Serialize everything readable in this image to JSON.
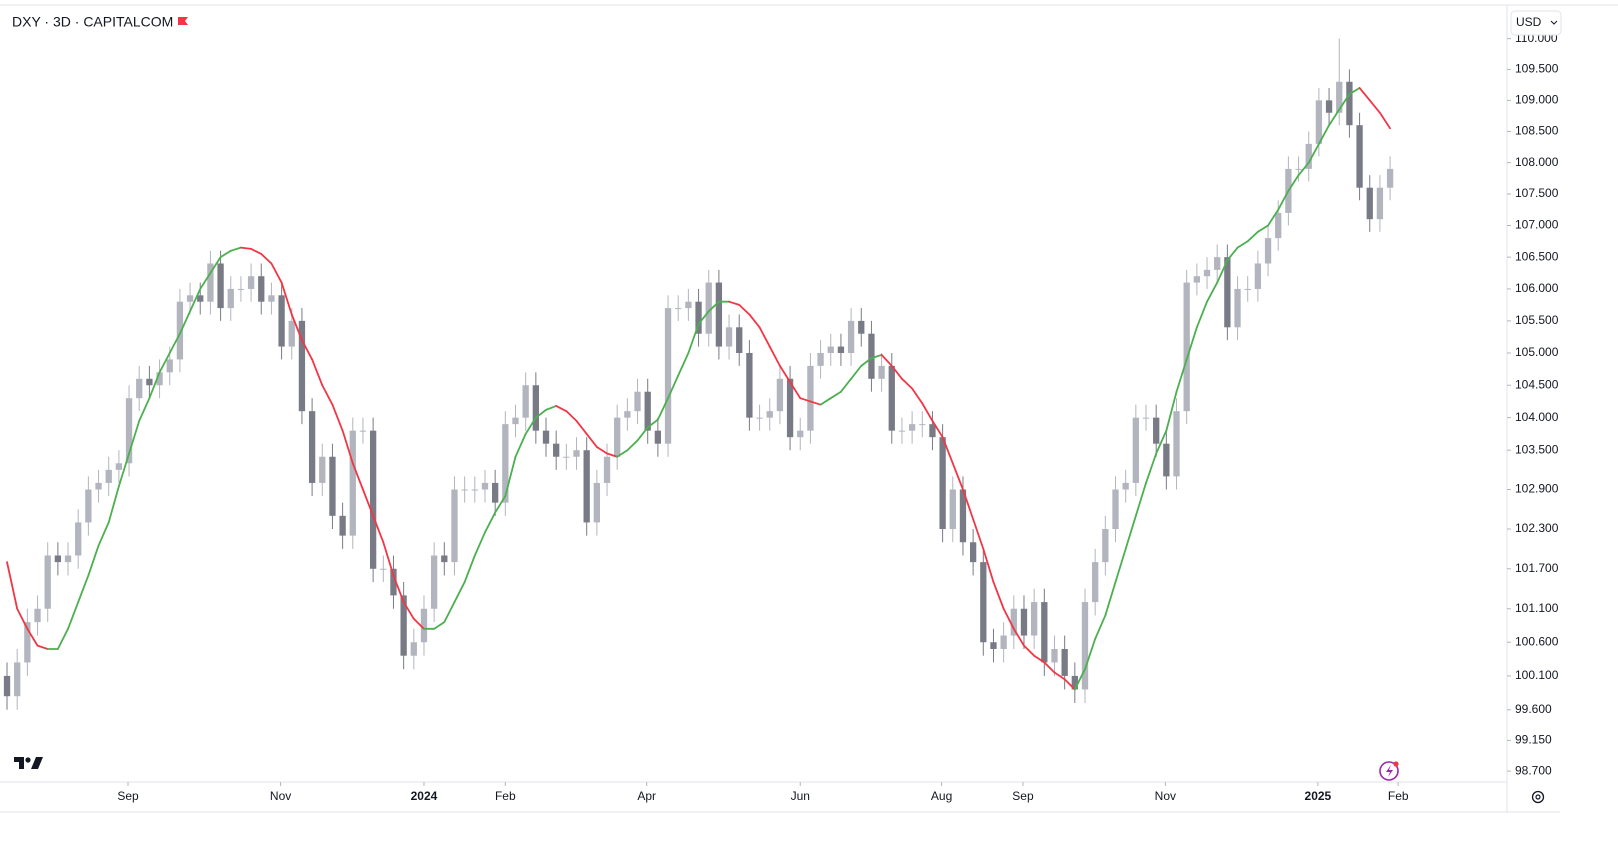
{
  "header": {
    "title": "DXY · 3D · CAPITALCOM",
    "currency": "USD"
  },
  "chart_data": {
    "type": "candlestick",
    "log_scale": true,
    "up_color": "#b2b5be",
    "down_color": "#787b86",
    "open": [
      100.1,
      99.8,
      100.3,
      100.9,
      101.1,
      101.9,
      101.8,
      101.9,
      102.4,
      102.9,
      103.0,
      103.2,
      103.3,
      104.3,
      104.6,
      104.5,
      104.7,
      104.9,
      105.8,
      105.9,
      105.8,
      106.4,
      105.7,
      106.0,
      106.0,
      106.2,
      105.8,
      105.9,
      105.1,
      105.5,
      104.1,
      103.0,
      103.4,
      102.5,
      102.2,
      103.8,
      103.8,
      101.7,
      101.7,
      101.3,
      100.4,
      100.6,
      101.1,
      101.9,
      101.8,
      102.9,
      102.9,
      102.9,
      103.0,
      102.7,
      103.9,
      104.0,
      104.5,
      103.8,
      103.6,
      103.4,
      103.4,
      103.5,
      102.4,
      103.0,
      103.4,
      104.0,
      104.1,
      104.4,
      103.8,
      103.6,
      105.7,
      105.7,
      105.8,
      105.3,
      106.1,
      105.1,
      105.4,
      105.0,
      104.0,
      104.0,
      104.1,
      104.6,
      103.7,
      103.8,
      104.8,
      105.0,
      105.1,
      105.0,
      105.5,
      105.3,
      104.6,
      104.8,
      103.8,
      103.8,
      103.9,
      103.9,
      103.7,
      102.3,
      102.9,
      102.1,
      101.8,
      100.6,
      100.5,
      100.7,
      101.1,
      100.7,
      101.2,
      100.3,
      100.5,
      100.1,
      99.9,
      101.2,
      101.8,
      102.3,
      102.9,
      103.0,
      104.0,
      104.0,
      103.6,
      103.1,
      104.1,
      106.1,
      106.2,
      106.3,
      106.5,
      105.4,
      106.0,
      106.0,
      106.4,
      106.8,
      107.2,
      107.9,
      107.9,
      108.3,
      109.0,
      108.8,
      109.3,
      108.6,
      107.6,
      107.1,
      107.6
    ],
    "high": [
      100.3,
      100.5,
      101.1,
      101.3,
      102.1,
      102.1,
      102.1,
      102.6,
      103.1,
      103.2,
      103.4,
      103.5,
      104.5,
      104.8,
      104.8,
      104.9,
      105.1,
      106.0,
      106.1,
      106.1,
      106.6,
      106.6,
      106.2,
      106.2,
      106.4,
      106.4,
      106.1,
      106.1,
      105.7,
      105.7,
      104.3,
      103.6,
      103.6,
      102.7,
      104.0,
      104.0,
      104.0,
      101.9,
      101.9,
      101.5,
      100.8,
      101.3,
      102.1,
      102.1,
      103.1,
      103.1,
      103.1,
      103.2,
      103.2,
      104.1,
      104.2,
      104.7,
      104.7,
      104.0,
      103.8,
      103.6,
      103.7,
      103.7,
      103.2,
      103.6,
      104.2,
      104.3,
      104.6,
      104.6,
      104.0,
      105.9,
      105.9,
      106.0,
      106.0,
      106.3,
      106.3,
      105.6,
      105.6,
      105.2,
      104.2,
      104.3,
      104.8,
      104.8,
      104.0,
      105.0,
      105.2,
      105.3,
      105.3,
      105.7,
      105.7,
      105.5,
      105.0,
      105.0,
      104.0,
      104.1,
      104.1,
      104.1,
      103.9,
      103.1,
      103.1,
      102.3,
      102.0,
      100.8,
      100.9,
      101.3,
      101.3,
      101.4,
      101.4,
      100.7,
      100.7,
      100.3,
      101.4,
      102.0,
      102.5,
      103.1,
      103.2,
      104.2,
      104.2,
      104.2,
      103.8,
      104.3,
      106.3,
      106.4,
      106.5,
      106.7,
      106.7,
      106.2,
      106.2,
      106.6,
      107.0,
      107.4,
      108.1,
      108.1,
      108.5,
      109.2,
      109.2,
      110.0,
      109.5,
      108.8,
      107.8,
      107.8,
      108.1
    ],
    "low": [
      99.6,
      99.6,
      100.1,
      100.7,
      100.9,
      101.6,
      101.6,
      101.7,
      102.2,
      102.7,
      102.8,
      103.0,
      103.1,
      104.1,
      104.3,
      104.3,
      104.5,
      104.7,
      105.6,
      105.6,
      105.6,
      105.5,
      105.5,
      105.8,
      105.8,
      105.6,
      105.6,
      104.9,
      104.9,
      103.9,
      102.8,
      102.8,
      102.3,
      102.0,
      102.0,
      103.6,
      101.5,
      101.5,
      101.1,
      100.2,
      100.2,
      100.4,
      100.9,
      101.6,
      101.6,
      102.7,
      102.7,
      102.7,
      102.5,
      102.5,
      103.7,
      103.8,
      103.6,
      103.4,
      103.2,
      103.2,
      103.2,
      102.2,
      102.2,
      102.8,
      103.2,
      103.8,
      103.9,
      103.6,
      103.4,
      103.4,
      105.5,
      105.5,
      105.1,
      105.1,
      104.9,
      104.9,
      104.8,
      103.8,
      103.8,
      103.8,
      103.9,
      103.5,
      103.5,
      103.6,
      104.6,
      104.8,
      104.8,
      104.8,
      105.1,
      104.4,
      104.4,
      103.6,
      103.6,
      103.6,
      103.7,
      103.5,
      102.1,
      102.1,
      101.9,
      101.6,
      100.4,
      100.3,
      100.3,
      100.5,
      100.5,
      100.5,
      100.1,
      100.1,
      99.9,
      99.7,
      99.7,
      101.0,
      101.6,
      102.1,
      102.7,
      102.8,
      103.8,
      103.4,
      102.9,
      102.9,
      103.9,
      105.9,
      106.0,
      106.1,
      105.2,
      105.2,
      105.8,
      105.8,
      106.2,
      106.6,
      107.0,
      107.7,
      107.7,
      108.1,
      108.6,
      108.6,
      108.4,
      107.4,
      106.9,
      106.9,
      107.4
    ],
    "close": [
      99.8,
      100.3,
      100.9,
      101.1,
      101.9,
      101.8,
      101.9,
      102.4,
      102.9,
      103.0,
      103.2,
      103.3,
      104.3,
      104.6,
      104.5,
      104.7,
      104.9,
      105.8,
      105.9,
      105.8,
      106.4,
      105.7,
      106.0,
      106.0,
      106.2,
      105.8,
      105.9,
      105.1,
      105.5,
      104.1,
      103.0,
      103.4,
      102.5,
      102.2,
      103.8,
      103.8,
      101.7,
      101.7,
      101.3,
      100.4,
      100.6,
      101.1,
      101.9,
      101.8,
      102.9,
      102.9,
      102.9,
      103.0,
      102.7,
      103.9,
      104.0,
      104.5,
      103.8,
      103.6,
      103.4,
      103.4,
      103.5,
      102.4,
      103.0,
      103.4,
      104.0,
      104.1,
      104.4,
      103.8,
      103.6,
      105.7,
      105.7,
      105.8,
      105.3,
      106.1,
      105.1,
      105.4,
      105.0,
      104.0,
      104.0,
      104.1,
      104.6,
      103.7,
      103.8,
      104.8,
      105.0,
      105.1,
      105.0,
      105.5,
      105.3,
      104.6,
      104.8,
      103.8,
      103.8,
      103.9,
      103.9,
      103.7,
      102.3,
      102.9,
      102.1,
      101.8,
      100.6,
      100.5,
      100.7,
      101.1,
      100.7,
      101.2,
      100.3,
      100.5,
      100.1,
      99.9,
      101.2,
      101.8,
      102.3,
      102.9,
      103.0,
      104.0,
      104.0,
      103.6,
      103.1,
      104.1,
      106.1,
      106.2,
      106.3,
      106.5,
      105.4,
      106.0,
      106.0,
      106.4,
      106.8,
      107.2,
      107.9,
      107.9,
      108.3,
      109.0,
      108.8,
      109.3,
      108.6,
      107.6,
      107.1,
      107.6,
      107.9
    ],
    "indicator": {
      "up_color": "#4caf50",
      "down_color": "#f23645",
      "values": [
        101.8,
        101.1,
        100.8,
        100.55,
        100.5,
        100.5,
        100.8,
        101.2,
        101.6,
        102.05,
        102.4,
        102.95,
        103.45,
        103.95,
        104.3,
        104.7,
        105.0,
        105.3,
        105.65,
        106.0,
        106.25,
        106.5,
        106.6,
        106.65,
        106.63,
        106.55,
        106.4,
        106.1,
        105.6,
        105.2,
        104.9,
        104.5,
        104.2,
        103.8,
        103.3,
        102.9,
        102.5,
        102.1,
        101.6,
        101.2,
        100.95,
        100.8,
        100.8,
        100.9,
        101.2,
        101.5,
        101.9,
        102.25,
        102.55,
        102.8,
        103.4,
        103.75,
        104.0,
        104.12,
        104.18,
        104.1,
        103.95,
        103.75,
        103.55,
        103.45,
        103.4,
        103.5,
        103.65,
        103.85,
        103.97,
        104.3,
        104.65,
        105.0,
        105.45,
        105.65,
        105.8,
        105.8,
        105.75,
        105.6,
        105.4,
        105.1,
        104.8,
        104.55,
        104.3,
        104.25,
        104.2,
        104.3,
        104.4,
        104.6,
        104.8,
        104.92,
        104.97,
        104.8,
        104.6,
        104.45,
        104.22,
        103.95,
        103.7,
        103.3,
        102.9,
        102.45,
        102.0,
        101.5,
        101.1,
        100.8,
        100.55,
        100.4,
        100.3,
        100.15,
        100.05,
        99.9,
        100.2,
        100.65,
        101.0,
        101.5,
        102.0,
        102.5,
        103.0,
        103.45,
        103.8,
        104.4,
        104.9,
        105.4,
        105.8,
        106.1,
        106.45,
        106.65,
        106.75,
        106.9,
        107.0,
        107.25,
        107.55,
        107.8,
        108.0,
        108.3,
        108.6,
        108.85,
        109.1,
        109.2,
        109.0,
        108.8,
        108.55
      ]
    },
    "xlim": [
      -0.69,
      147.3
    ],
    "xticks": [
      {
        "value": 11.9,
        "label": "Sep"
      },
      {
        "value": 26.9,
        "label": "Nov"
      },
      {
        "value": 41.0,
        "label": "2024"
      },
      {
        "value": 49.0,
        "label": "Feb"
      },
      {
        "value": 62.9,
        "label": "Apr"
      },
      {
        "value": 78.0,
        "label": "Jun"
      },
      {
        "value": 91.9,
        "label": "Aug"
      },
      {
        "value": 99.9,
        "label": "Sep"
      },
      {
        "value": 113.9,
        "label": "Nov"
      },
      {
        "value": 128.9,
        "label": "2025"
      },
      {
        "value": 136.8,
        "label": "Feb"
      }
    ],
    "ylim": [
      98.57,
      110.5
    ],
    "yticks": [
      {
        "value": 98.7,
        "label": "98.700"
      },
      {
        "value": 99.15,
        "label": "99.150"
      },
      {
        "value": 99.6,
        "label": "99.600"
      },
      {
        "value": 100.1,
        "label": "100.100"
      },
      {
        "value": 100.6,
        "label": "100.600"
      },
      {
        "value": 101.1,
        "label": "101.100"
      },
      {
        "value": 101.7,
        "label": "101.700"
      },
      {
        "value": 102.3,
        "label": "102.300"
      },
      {
        "value": 102.9,
        "label": "102.900"
      },
      {
        "value": 103.5,
        "label": "103.500"
      },
      {
        "value": 104,
        "label": "104.000"
      },
      {
        "value": 104.5,
        "label": "104.500"
      },
      {
        "value": 105,
        "label": "105.000"
      },
      {
        "value": 105.5,
        "label": "105.500"
      },
      {
        "value": 106,
        "label": "106.000"
      },
      {
        "value": 106.5,
        "label": "106.500"
      },
      {
        "value": 107,
        "label": "107.000"
      },
      {
        "value": 107.5,
        "label": "107.500"
      },
      {
        "value": 108,
        "label": "108.000"
      },
      {
        "value": 108.5,
        "label": "108.500"
      },
      {
        "value": 109,
        "label": "109.000"
      },
      {
        "value": 109.5,
        "label": "109.500"
      },
      {
        "value": 110,
        "label": "110.000"
      }
    ]
  }
}
